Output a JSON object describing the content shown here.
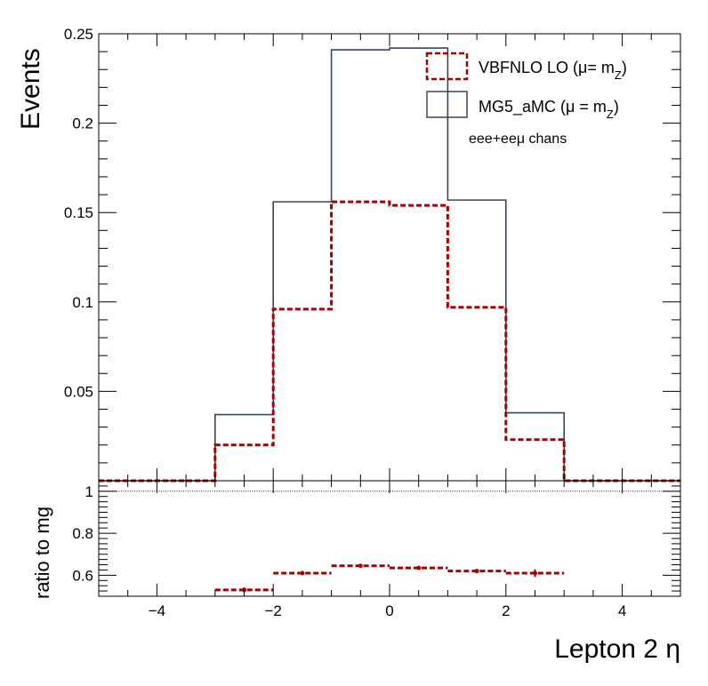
{
  "chart_data": [
    {
      "type": "step-histogram",
      "panel": "main",
      "ylabel": "Events",
      "xlim": [
        -5,
        5
      ],
      "ylim": [
        0,
        0.25
      ],
      "yticks": [
        0.05,
        0.1,
        0.15,
        0.2,
        0.25
      ],
      "ytick_labels": [
        "0.05",
        "0.1",
        "0.15",
        "0.2",
        "0.25"
      ],
      "bin_edges": [
        -5,
        -4,
        -3,
        -2,
        -1,
        0,
        1,
        2,
        3,
        4,
        5
      ],
      "series": [
        {
          "name": "MG5_aMC (μ = m_Z)",
          "legend_main": "MG5_aMC (μ = m",
          "legend_sub": "Z",
          "legend_close": ")",
          "color": "#364759",
          "style": "solid",
          "values": [
            0,
            0,
            0.037,
            0.156,
            0.241,
            0.242,
            0.157,
            0.038,
            0,
            0
          ]
        },
        {
          "name": "VBFNLO LO (μ= m_Z)",
          "legend_main": "VBFNLO LO (μ= m",
          "legend_sub": "Z",
          "legend_close": ")",
          "color": "#a50000",
          "style": "dashed",
          "values": [
            0,
            0,
            0.02,
            0.096,
            0.156,
            0.154,
            0.097,
            0.023,
            0,
            0
          ]
        }
      ],
      "annotation": "eee+eeμ chans",
      "legend_placement": "top-right"
    },
    {
      "type": "ratio",
      "panel": "ratio",
      "ylabel": "ratio to mg",
      "xlabel": "Lepton 2 η",
      "xlim": [
        -5,
        5
      ],
      "ylim": [
        0.5,
        1.05
      ],
      "yticks": [
        0.6,
        0.8,
        1
      ],
      "ytick_labels": [
        "0.6",
        "0.8",
        "1"
      ],
      "xticks": [
        -4,
        -2,
        0,
        2,
        4
      ],
      "xtick_labels": [
        "−4",
        "−2",
        "0",
        "2",
        "4"
      ],
      "reference_line": 1,
      "color": "#a50000",
      "bins": [
        {
          "x0": -3,
          "x1": -2,
          "value": 0.53,
          "error": 0.012
        },
        {
          "x0": -2,
          "x1": -1,
          "value": 0.61,
          "error": 0.008
        },
        {
          "x0": -1,
          "x1": 0,
          "value": 0.645,
          "error": 0.006
        },
        {
          "x0": 0,
          "x1": 1,
          "value": 0.635,
          "error": 0.006
        },
        {
          "x0": 1,
          "x1": 2,
          "value": 0.62,
          "error": 0.008
        },
        {
          "x0": 2,
          "x1": 3,
          "value": 0.61,
          "error": 0.018
        }
      ]
    }
  ]
}
